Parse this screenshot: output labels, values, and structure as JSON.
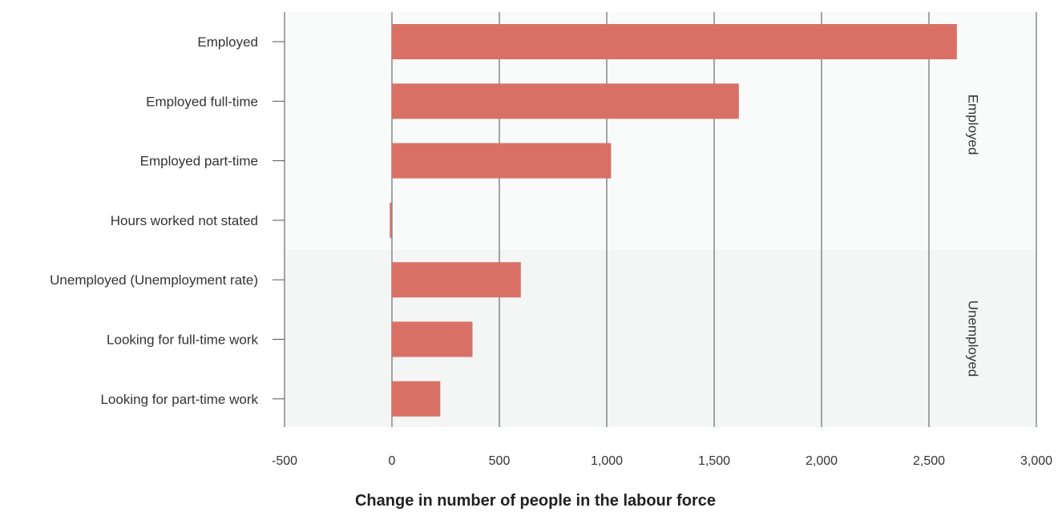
{
  "chart_data": {
    "type": "bar",
    "orientation": "horizontal",
    "categories": [
      "Employed",
      "Employed full-time",
      "Employed part-time",
      "Hours worked not stated",
      "Unemployed (Unemployment rate)",
      "Looking for full-time work",
      "Looking for part-time work"
    ],
    "values": [
      2630,
      1615,
      1020,
      -10,
      600,
      375,
      225
    ],
    "groups": [
      {
        "label": "Employed",
        "categories": [
          "Employed",
          "Employed full-time",
          "Employed part-time",
          "Hours worked not stated"
        ]
      },
      {
        "label": "Unemployed",
        "categories": [
          "Unemployed (Unemployment rate)",
          "Looking for full-time work",
          "Looking for part-time work"
        ]
      }
    ],
    "xlim": [
      -500,
      3000
    ],
    "xticks": [
      -500,
      0,
      500,
      1000,
      1500,
      2000,
      2500,
      3000
    ],
    "xtick_labels": [
      "-500",
      "0",
      "500",
      "1,000",
      "1,500",
      "2,000",
      "2,500",
      "3,000"
    ],
    "title": "",
    "xlabel": "Change in number of people in the labour force",
    "ylabel": "",
    "grid": "vertical",
    "legend": "none",
    "colors": {
      "bar": "#d97066",
      "grid": "#6b6b6b",
      "group_bg_employed": "#f9fafa",
      "group_bg_unemployed": "#f4f5f5"
    }
  }
}
